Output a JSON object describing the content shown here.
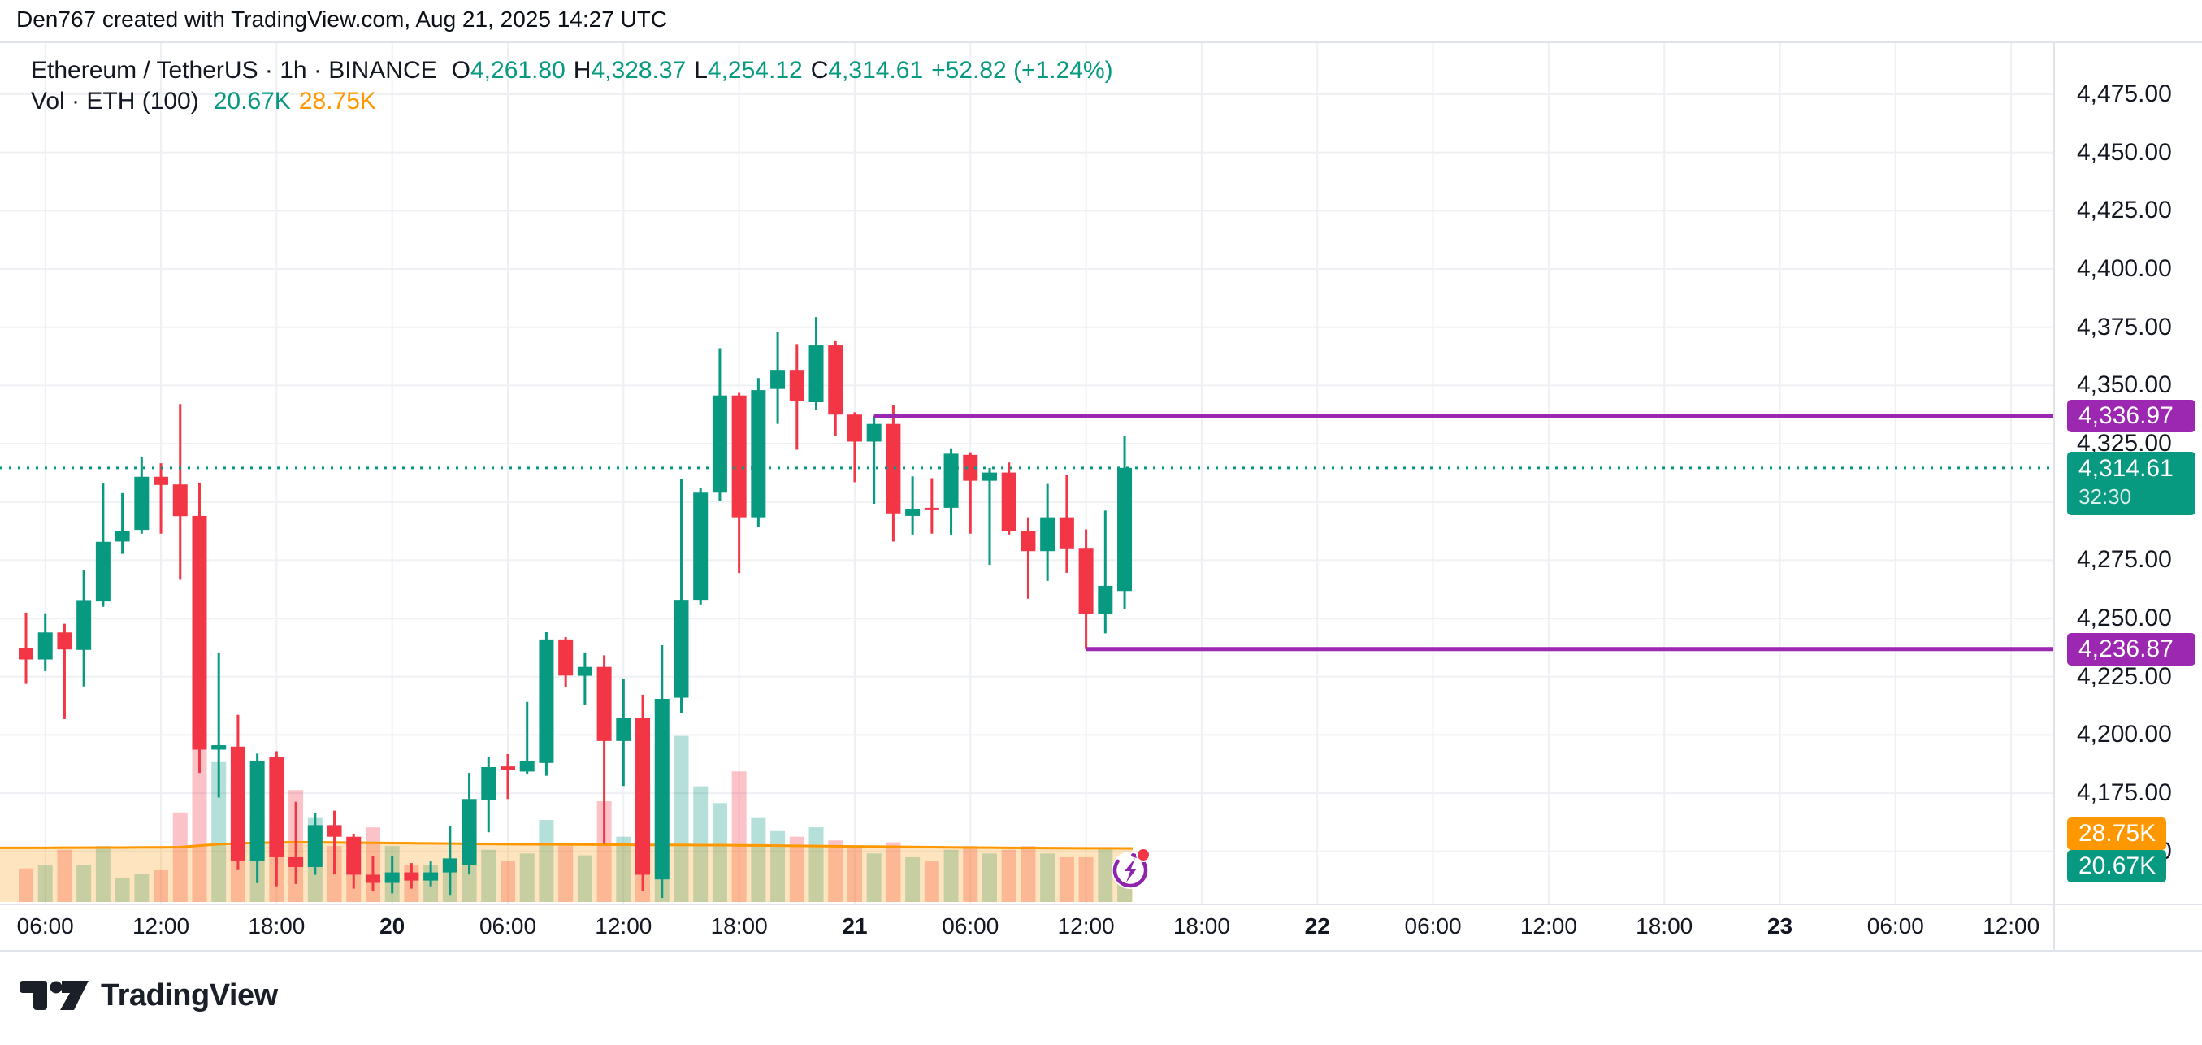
{
  "header": {
    "attribution": "Den767 created with TradingView.com, Aug 21, 2025 14:27 UTC"
  },
  "legend": {
    "symbol_title": "Ethereum / TetherUS · 1h · BINANCE",
    "ohlc": [
      {
        "label": "O",
        "value": "4,261.80"
      },
      {
        "label": "H",
        "value": "4,328.37"
      },
      {
        "label": "L",
        "value": "4,254.12"
      },
      {
        "label": "C",
        "value": "4,314.61"
      }
    ],
    "change": "+52.82 (+1.24%)",
    "volume_label": "Vol · ETH (100)",
    "volume_current": "20.67K",
    "volume_ma": "28.75K"
  },
  "scale_labels": {
    "ray_high": "4,336.97",
    "last_price": "4,314.61",
    "countdown": "32:30",
    "ray_low": "4,236.87",
    "vol_ma": "28.75K",
    "vol_current": "20.67K"
  },
  "logo": {
    "text": "TradingView"
  },
  "colors": {
    "up": "#089981",
    "down": "#f23645",
    "ray": "#9c27b0",
    "volume_ma": "#ff9800",
    "text": "#131722",
    "grid": "#eef0f4",
    "border": "#e0e3eb",
    "badge": "#f23645"
  },
  "chart_data": {
    "type": "candlestick",
    "title": "Ethereum / TetherUS · 1h · BINANCE",
    "last_price": 4314.61,
    "price_axis": {
      "visible_range": [
        4127,
        4497
      ],
      "tick_step": 25,
      "ticks": [
        {
          "text": "4,475.00",
          "price": 4475
        },
        {
          "text": "4,450.00",
          "price": 4450
        },
        {
          "text": "4,425.00",
          "price": 4425
        },
        {
          "text": "4,400.00",
          "price": 4400
        },
        {
          "text": "4,375.00",
          "price": 4375
        },
        {
          "text": "4,350.00",
          "price": 4350
        },
        {
          "text": "4,325.00",
          "price": 4325
        },
        {
          "text": "4,300.00",
          "price": 4300
        },
        {
          "text": "4,275.00",
          "price": 4275
        },
        {
          "text": "4,250.00",
          "price": 4250
        },
        {
          "text": "4,225.00",
          "price": 4225
        },
        {
          "text": "4,200.00",
          "price": 4200
        },
        {
          "text": "4,175.00",
          "price": 4175
        },
        {
          "text": "4,150.00",
          "price": 4150
        }
      ]
    },
    "time_axis": {
      "labels": [
        {
          "text": "06:00",
          "t": 6,
          "bold": false
        },
        {
          "text": "12:00",
          "t": 12,
          "bold": false
        },
        {
          "text": "18:00",
          "t": 18,
          "bold": false
        },
        {
          "text": "20",
          "t": 24,
          "bold": true
        },
        {
          "text": "06:00",
          "t": 30,
          "bold": false
        },
        {
          "text": "12:00",
          "t": 36,
          "bold": false
        },
        {
          "text": "18:00",
          "t": 42,
          "bold": false
        },
        {
          "text": "21",
          "t": 48,
          "bold": true
        },
        {
          "text": "06:00",
          "t": 54,
          "bold": false
        },
        {
          "text": "12:00",
          "t": 60,
          "bold": false
        },
        {
          "text": "18:00",
          "t": 66,
          "bold": false
        },
        {
          "text": "22",
          "t": 72,
          "bold": true
        },
        {
          "text": "06:00",
          "t": 78,
          "bold": false
        },
        {
          "text": "12:00",
          "t": 84,
          "bold": false
        },
        {
          "text": "18:00",
          "t": 90,
          "bold": false
        },
        {
          "text": "23",
          "t": 96,
          "bold": true
        },
        {
          "text": "06:00",
          "t": 102,
          "bold": false
        },
        {
          "text": "12:00",
          "t": 108,
          "bold": false
        }
      ]
    },
    "rays": [
      {
        "price": 4336.97,
        "from_index": 44
      },
      {
        "price": 4236.87,
        "from_index": 55
      }
    ],
    "volume_ma_values": [
      29,
      29,
      29.1,
      29.1,
      29.2,
      29.2,
      29.3,
      29.3,
      29.4,
      30.2,
      31,
      31.4,
      31.7,
      31.9,
      32,
      32,
      31.9,
      31.8,
      31.7,
      31.6,
      31.5,
      31.4,
      31.3,
      31.2,
      31.1,
      31,
      30.9,
      30.9,
      30.8,
      30.8,
      30.7,
      30.7,
      30.6,
      30.6,
      30.6,
      30.5,
      30.5,
      30.4,
      30.3,
      30.2,
      30.1,
      30,
      29.9,
      29.8,
      29.7,
      29.6,
      29.5,
      29.4,
      29.3,
      29.2,
      29.1,
      29,
      28.95,
      28.9,
      28.85,
      28.8,
      28.78,
      28.75
    ],
    "candles": [
      {
        "t": "Aug 19 05:00",
        "o": 4237.4,
        "h": 4252.5,
        "l": 4221.9,
        "c": 4232.4,
        "v": 18
      },
      {
        "t": "Aug 19 06:00",
        "o": 4232.4,
        "h": 4252.2,
        "l": 4227.4,
        "c": 4244.0,
        "v": 20
      },
      {
        "t": "Aug 19 07:00",
        "o": 4244.0,
        "h": 4247.7,
        "l": 4206.8,
        "c": 4236.7,
        "v": 28
      },
      {
        "t": "Aug 19 08:00",
        "o": 4236.5,
        "h": 4270.7,
        "l": 4220.8,
        "c": 4257.9,
        "v": 20
      },
      {
        "t": "Aug 19 09:00",
        "o": 4257.3,
        "h": 4307.9,
        "l": 4255.0,
        "c": 4282.9,
        "v": 30
      },
      {
        "t": "Aug 19 10:00",
        "o": 4283.0,
        "h": 4303.8,
        "l": 4277.7,
        "c": 4287.6,
        "v": 13
      },
      {
        "t": "Aug 19 11:00",
        "o": 4288.0,
        "h": 4319.5,
        "l": 4286.4,
        "c": 4310.8,
        "v": 15
      },
      {
        "t": "Aug 19 12:00",
        "o": 4310.8,
        "h": 4316.6,
        "l": 4286.4,
        "c": 4307.3,
        "v": 17
      },
      {
        "t": "Aug 19 13:00",
        "o": 4307.5,
        "h": 4342.0,
        "l": 4266.6,
        "c": 4293.9,
        "v": 48
      },
      {
        "t": "Aug 19 14:00",
        "o": 4294.0,
        "h": 4308.3,
        "l": 4183.7,
        "c": 4193.7,
        "v": 114
      },
      {
        "t": "Aug 19 15:00",
        "o": 4193.7,
        "h": 4235.4,
        "l": 4173.1,
        "c": 4195.6,
        "v": 75
      },
      {
        "t": "Aug 19 16:00",
        "o": 4195.0,
        "h": 4208.6,
        "l": 4142.0,
        "c": 4146.0,
        "v": 66
      },
      {
        "t": "Aug 19 17:00",
        "o": 4146.0,
        "h": 4192.0,
        "l": 4136.4,
        "c": 4189.0,
        "v": 45
      },
      {
        "t": "Aug 19 18:00",
        "o": 4190.5,
        "h": 4193.0,
        "l": 4135.0,
        "c": 4147.5,
        "v": 39
      },
      {
        "t": "Aug 19 19:00",
        "o": 4147.5,
        "h": 4171.3,
        "l": 4136.0,
        "c": 4143.3,
        "v": 60
      },
      {
        "t": "Aug 19 20:00",
        "o": 4143.3,
        "h": 4166.3,
        "l": 4140.0,
        "c": 4161.3,
        "v": 45
      },
      {
        "t": "Aug 19 21:00",
        "o": 4161.3,
        "h": 4167.5,
        "l": 4140.1,
        "c": 4156.3,
        "v": 30
      },
      {
        "t": "Aug 19 22:00",
        "o": 4156.3,
        "h": 4157.6,
        "l": 4134.0,
        "c": 4140.0,
        "v": 25
      },
      {
        "t": "Aug 19 23:00",
        "o": 4140.0,
        "h": 4148.0,
        "l": 4133.0,
        "c": 4136.5,
        "v": 40
      },
      {
        "t": "Aug 20 00:00",
        "o": 4136.5,
        "h": 4148.0,
        "l": 4132.0,
        "c": 4141.0,
        "v": 30
      },
      {
        "t": "Aug 20 01:00",
        "o": 4141.0,
        "h": 4145.0,
        "l": 4134.0,
        "c": 4137.5,
        "v": 20
      },
      {
        "t": "Aug 20 02:00",
        "o": 4137.5,
        "h": 4145.7,
        "l": 4135.0,
        "c": 4141.0,
        "v": 20
      },
      {
        "t": "Aug 20 03:00",
        "o": 4141.0,
        "h": 4161.0,
        "l": 4131.0,
        "c": 4147.0,
        "v": 22
      },
      {
        "t": "Aug 20 04:00",
        "o": 4144.0,
        "h": 4183.7,
        "l": 4140.1,
        "c": 4172.5,
        "v": 35
      },
      {
        "t": "Aug 20 05:00",
        "o": 4172.0,
        "h": 4190.6,
        "l": 4158.2,
        "c": 4186.2,
        "v": 28
      },
      {
        "t": "Aug 20 06:00",
        "o": 4186.5,
        "h": 4191.8,
        "l": 4172.5,
        "c": 4185.0,
        "v": 22
      },
      {
        "t": "Aug 20 07:00",
        "o": 4184.3,
        "h": 4214.2,
        "l": 4183.0,
        "c": 4188.7,
        "v": 26
      },
      {
        "t": "Aug 20 08:00",
        "o": 4188.0,
        "h": 4244.1,
        "l": 4182.5,
        "c": 4241.0,
        "v": 44
      },
      {
        "t": "Aug 20 09:00",
        "o": 4241.0,
        "h": 4242.0,
        "l": 4220.4,
        "c": 4225.5,
        "v": 30
      },
      {
        "t": "Aug 20 10:00",
        "o": 4225.4,
        "h": 4235.4,
        "l": 4213.0,
        "c": 4229.2,
        "v": 25
      },
      {
        "t": "Aug 20 11:00",
        "o": 4229.2,
        "h": 4234.2,
        "l": 4153.2,
        "c": 4197.4,
        "v": 54
      },
      {
        "t": "Aug 20 12:00",
        "o": 4197.4,
        "h": 4224.2,
        "l": 4178.1,
        "c": 4207.4,
        "v": 35
      },
      {
        "t": "Aug 20 13:00",
        "o": 4207.4,
        "h": 4217.3,
        "l": 4133.0,
        "c": 4140.0,
        "v": 65
      },
      {
        "t": "Aug 20 14:00",
        "o": 4138.0,
        "h": 4238.5,
        "l": 4130.0,
        "c": 4215.5,
        "v": 85
      },
      {
        "t": "Aug 20 15:00",
        "o": 4216.0,
        "h": 4310.0,
        "l": 4209.3,
        "c": 4258.0,
        "v": 89
      },
      {
        "t": "Aug 20 16:00",
        "o": 4258.0,
        "h": 4306.0,
        "l": 4256.0,
        "c": 4304.0,
        "v": 62
      },
      {
        "t": "Aug 20 17:00",
        "o": 4304.0,
        "h": 4366.0,
        "l": 4300.3,
        "c": 4345.7,
        "v": 53
      },
      {
        "t": "Aug 20 18:00",
        "o": 4345.7,
        "h": 4346.8,
        "l": 4269.5,
        "c": 4293.4,
        "v": 70
      },
      {
        "t": "Aug 20 19:00",
        "o": 4293.4,
        "h": 4353.2,
        "l": 4289.3,
        "c": 4348.0,
        "v": 45
      },
      {
        "t": "Aug 20 20:00",
        "o": 4348.5,
        "h": 4373.0,
        "l": 4333.5,
        "c": 4356.7,
        "v": 38
      },
      {
        "t": "Aug 20 21:00",
        "o": 4356.7,
        "h": 4367.8,
        "l": 4322.4,
        "c": 4343.4,
        "v": 35
      },
      {
        "t": "Aug 20 22:00",
        "o": 4342.8,
        "h": 4379.4,
        "l": 4339.3,
        "c": 4367.2,
        "v": 40
      },
      {
        "t": "Aug 20 23:00",
        "o": 4367.2,
        "h": 4369.0,
        "l": 4328.2,
        "c": 4337.5,
        "v": 33
      },
      {
        "t": "Aug 21 00:00",
        "o": 4337.5,
        "h": 4338.5,
        "l": 4308.5,
        "c": 4325.9,
        "v": 30
      },
      {
        "t": "Aug 21 01:00",
        "o": 4325.9,
        "h": 4336.97,
        "l": 4299.2,
        "c": 4333.5,
        "v": 26
      },
      {
        "t": "Aug 21 02:00",
        "o": 4333.5,
        "h": 4341.6,
        "l": 4283.0,
        "c": 4295.1,
        "v": 32
      },
      {
        "t": "Aug 21 03:00",
        "o": 4294.0,
        "h": 4311.0,
        "l": 4286.0,
        "c": 4296.8,
        "v": 24
      },
      {
        "t": "Aug 21 04:00",
        "o": 4297.5,
        "h": 4310.2,
        "l": 4286.4,
        "c": 4297.0,
        "v": 22
      },
      {
        "t": "Aug 21 05:00",
        "o": 4297.5,
        "h": 4323.0,
        "l": 4286.0,
        "c": 4320.7,
        "v": 28
      },
      {
        "t": "Aug 21 06:00",
        "o": 4320.2,
        "h": 4321.3,
        "l": 4286.4,
        "c": 4309.1,
        "v": 30
      },
      {
        "t": "Aug 21 07:00",
        "o": 4309.1,
        "h": 4314.6,
        "l": 4273.0,
        "c": 4312.6,
        "v": 26
      },
      {
        "t": "Aug 21 08:00",
        "o": 4312.6,
        "h": 4316.9,
        "l": 4286.0,
        "c": 4287.6,
        "v": 28
      },
      {
        "t": "Aug 21 09:00",
        "o": 4287.6,
        "h": 4293.4,
        "l": 4258.5,
        "c": 4278.9,
        "v": 30
      },
      {
        "t": "Aug 21 10:00",
        "o": 4278.9,
        "h": 4307.7,
        "l": 4266.1,
        "c": 4293.4,
        "v": 26
      },
      {
        "t": "Aug 21 11:00",
        "o": 4293.4,
        "h": 4311.4,
        "l": 4269.6,
        "c": 4280.1,
        "v": 24
      },
      {
        "t": "Aug 21 12:00",
        "o": 4280.3,
        "h": 4288.2,
        "l": 4236.87,
        "c": 4251.8,
        "v": 24
      },
      {
        "t": "Aug 21 13:00",
        "o": 4251.8,
        "h": 4296.3,
        "l": 4243.6,
        "c": 4264.0,
        "v": 29
      },
      {
        "t": "Aug 21 14:00",
        "o": 4261.8,
        "h": 4328.37,
        "l": 4254.12,
        "c": 4314.61,
        "v": 20.67
      }
    ]
  }
}
